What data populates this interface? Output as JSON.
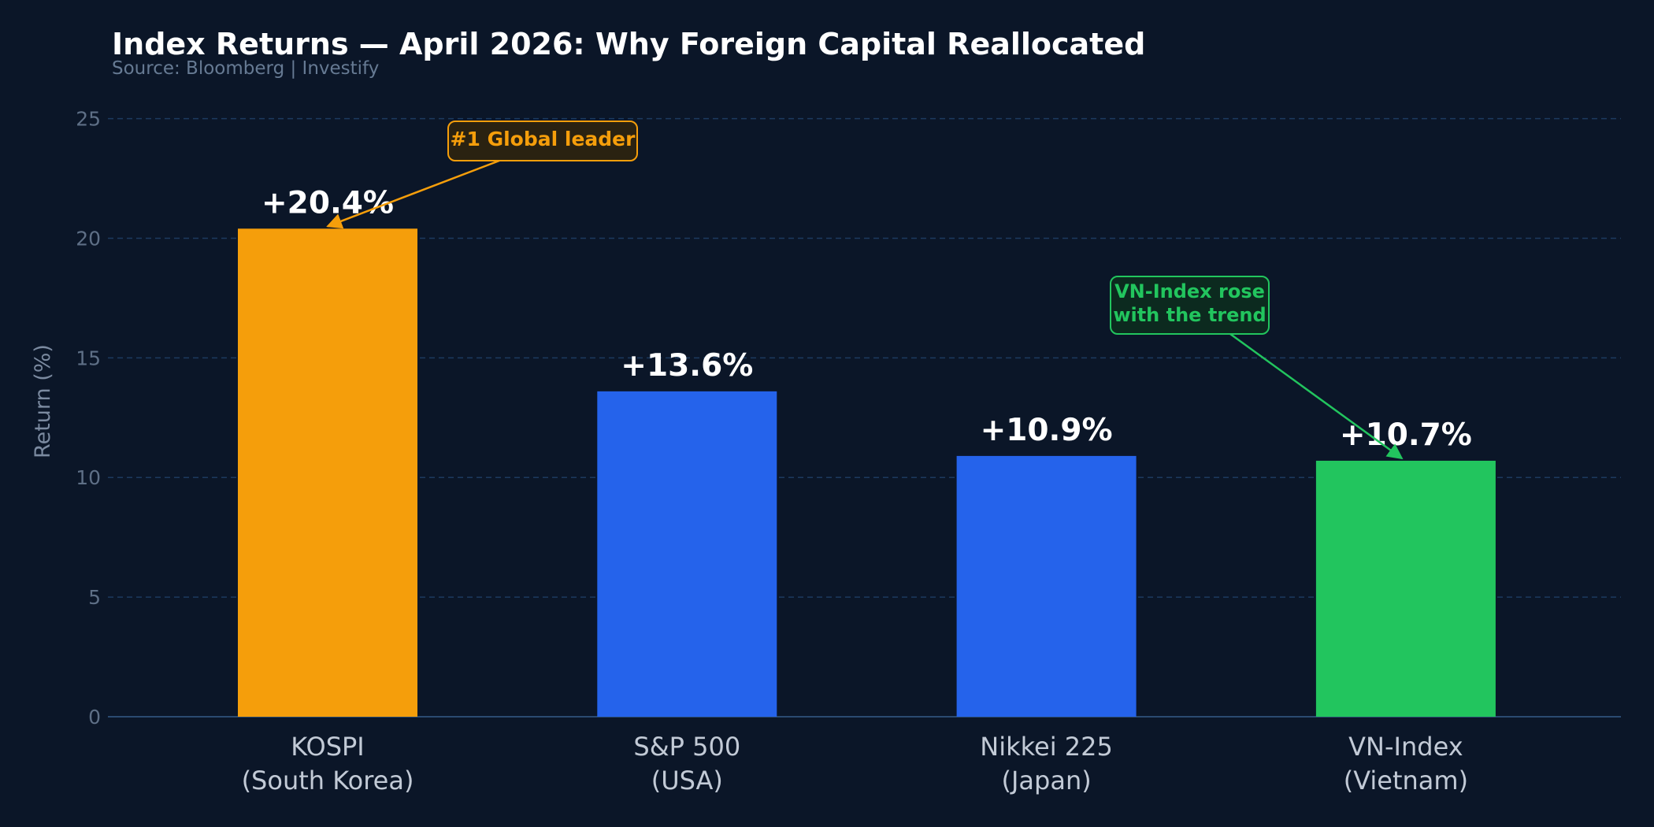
{
  "header": {
    "title": "Index Returns — April 2026: Why Foreign Capital Reallocated",
    "subtitle": "Source: Bloomberg  |  Investify"
  },
  "colors": {
    "background": "#0b1628",
    "gridline": "#1d3a5f",
    "kospi": "#f59e0b",
    "sp500": "#2563eb",
    "nikkei": "#2563eb",
    "vnindex": "#22c55e"
  },
  "chart_data": {
    "type": "bar",
    "title": "Index Returns — April 2026: Why Foreign Capital Reallocated",
    "subtitle": "Source: Bloomberg  |  Investify",
    "xlabel": "",
    "ylabel": "Return (%)",
    "ylim": [
      0,
      26.5
    ],
    "yticks": [
      0,
      5,
      10,
      15,
      20,
      25
    ],
    "grid": true,
    "categories": [
      [
        "KOSPI",
        "(South Korea)"
      ],
      [
        "S&P 500",
        "(USA)"
      ],
      [
        "Nikkei 225",
        "(Japan)"
      ],
      [
        "VN-Index",
        "(Vietnam)"
      ]
    ],
    "values": [
      20.4,
      13.6,
      10.9,
      10.7
    ],
    "value_labels": [
      "+20.4%",
      "+13.6%",
      "+10.9%",
      "+10.7%"
    ],
    "bar_colors": [
      "#f59e0b",
      "#2563eb",
      "#2563eb",
      "#22c55e"
    ],
    "annotations": [
      {
        "lines": [
          "#1 Global leader"
        ],
        "target_category": 0,
        "target_value": 20.4,
        "color": "#f59e0b",
        "box_fill": "#2a2211"
      },
      {
        "lines": [
          "VN-Index rose",
          "with the trend"
        ],
        "target_category": 3,
        "target_value": 10.7,
        "color": "#22c55e",
        "box_fill": "#0c2a1f"
      }
    ]
  }
}
